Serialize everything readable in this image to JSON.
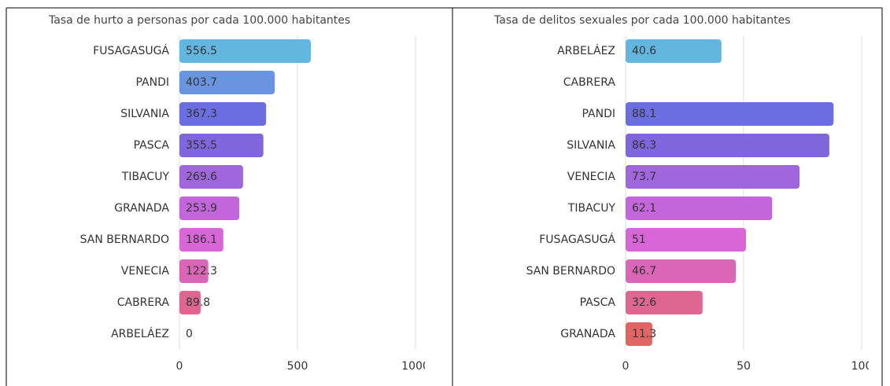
{
  "chart_data": [
    {
      "type": "bar",
      "orientation": "horizontal",
      "title": "Tasa de hurto a personas por cada 100.000 habitantes",
      "categories": [
        "FUSAGASUGÁ",
        "PANDI",
        "SILVANIA",
        "PASCA",
        "TIBACUY",
        "GRANADA",
        "SAN BERNARDO",
        "VENECIA",
        "CABRERA",
        "ARBELÁEZ"
      ],
      "values": [
        556.5,
        403.7,
        367.3,
        355.5,
        269.6,
        253.9,
        186.1,
        122.3,
        89.8,
        0
      ],
      "colors": [
        "#62b6e0",
        "#6a93e0",
        "#6b6ee0",
        "#7f66dc",
        "#a066dc",
        "#c366dc",
        "#d966d6",
        "#db66b8",
        "#de6690",
        "#e06666"
      ],
      "xlim": [
        0,
        1000
      ],
      "xticks": [
        0,
        500,
        1000
      ],
      "grid": true
    },
    {
      "type": "bar",
      "orientation": "horizontal",
      "title": "Tasa de delitos sexuales por cada 100.000 habitantes",
      "categories": [
        "ARBELÁEZ",
        "CABRERA",
        "PANDI",
        "SILVANIA",
        "VENECIA",
        "TIBACUY",
        "FUSAGASUGÁ",
        "SAN BERNARDO",
        "PASCA",
        "GRANADA"
      ],
      "values": [
        40.6,
        null,
        88.1,
        86.3,
        73.7,
        62.1,
        51,
        46.7,
        32.6,
        11.3
      ],
      "colors": [
        "#62b6e0",
        "#6a93e0",
        "#6b6ee0",
        "#7f66dc",
        "#a066dc",
        "#c366dc",
        "#d966d6",
        "#db66b8",
        "#de6690",
        "#e06666"
      ],
      "xlim": [
        0,
        100
      ],
      "xticks": [
        0,
        50,
        100
      ],
      "grid": true
    }
  ]
}
